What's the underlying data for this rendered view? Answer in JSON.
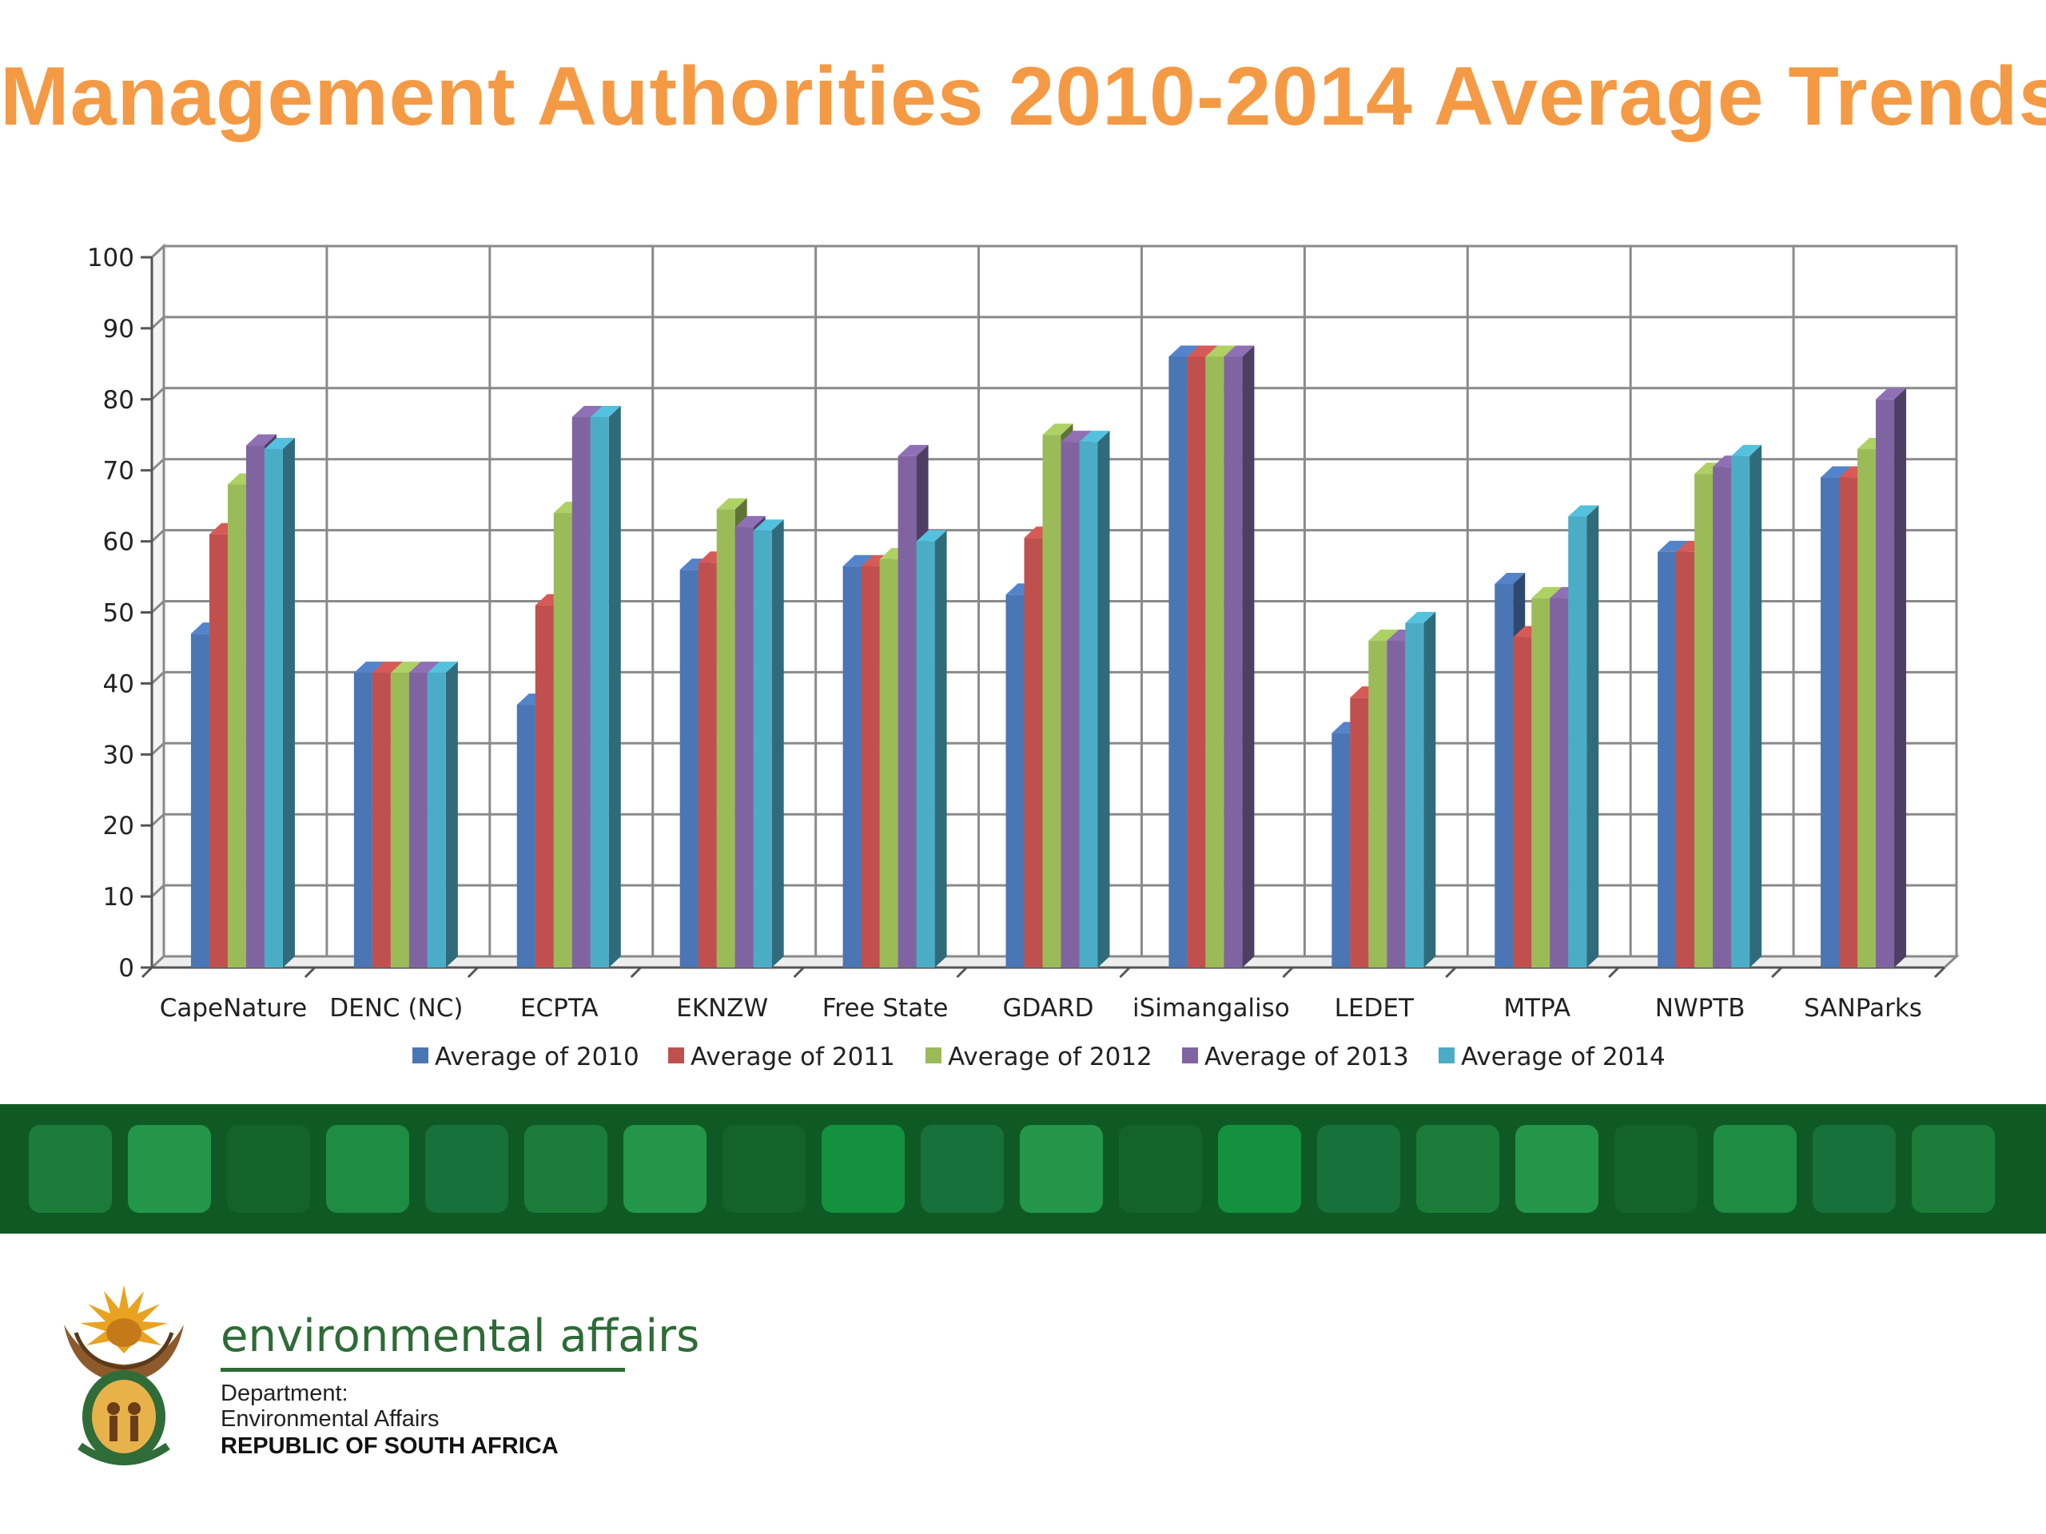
{
  "page": {
    "title": "Management Authorities 2010-2014 Average Trends"
  },
  "chart_data": {
    "type": "bar",
    "title": "",
    "xlabel": "",
    "ylabel": "",
    "ylim": [
      0,
      100
    ],
    "yticks": [
      0,
      10,
      20,
      30,
      40,
      50,
      60,
      70,
      80,
      90,
      100
    ],
    "grid": true,
    "legend_position": "bottom",
    "categories": [
      "CapeNature",
      "DENC (NC)",
      "ECPTA",
      "EKNZW",
      "Free State",
      "GDARD",
      "iSimangaliso",
      "LEDET",
      "MTPA",
      "NWPTB",
      "SANParks"
    ],
    "series": [
      {
        "name": "Average of 2010",
        "color": "#4A76B5",
        "values": [
          47,
          41.5,
          37,
          56,
          56.5,
          52.5,
          86,
          33,
          54,
          58.5,
          69
        ]
      },
      {
        "name": "Average of 2011",
        "color": "#C0504D",
        "values": [
          61,
          41.5,
          51,
          57,
          56.5,
          60.5,
          86,
          38,
          46.5,
          58.5,
          69
        ]
      },
      {
        "name": "Average of 2012",
        "color": "#9BBB59",
        "values": [
          68,
          41.5,
          64,
          64.5,
          57.5,
          75,
          86,
          46,
          52,
          69.5,
          73
        ]
      },
      {
        "name": "Average of 2013",
        "color": "#8064A2",
        "values": [
          73.5,
          41.5,
          77.5,
          62,
          72,
          74,
          86,
          46,
          52,
          70.5,
          80
        ]
      },
      {
        "name": "Average of 2014",
        "color": "#4BACC6",
        "values": [
          73,
          41.5,
          77.5,
          61.5,
          60,
          74,
          null,
          48.5,
          63.5,
          72,
          null
        ]
      }
    ]
  },
  "band": {
    "tile_colors": [
      "#1B7C3A",
      "#23964A",
      "#14632D",
      "#1E8C42",
      "#18703A",
      "#1B7C3A",
      "#23964A",
      "#14632D",
      "#14913F",
      "#18703A",
      "#23964A",
      "#14632D",
      "#14913F",
      "#18703A",
      "#1B7C3A",
      "#23964A",
      "#14632D",
      "#1E8C42",
      "#18703A",
      "#1B7C3A"
    ]
  },
  "footer": {
    "brand": "environmental affairs",
    "dept_line1": "Department:",
    "dept_line2": "Environmental Affairs",
    "country": "REPUBLIC OF SOUTH AFRICA",
    "logo_icon": "coat-of-arms-icon"
  }
}
